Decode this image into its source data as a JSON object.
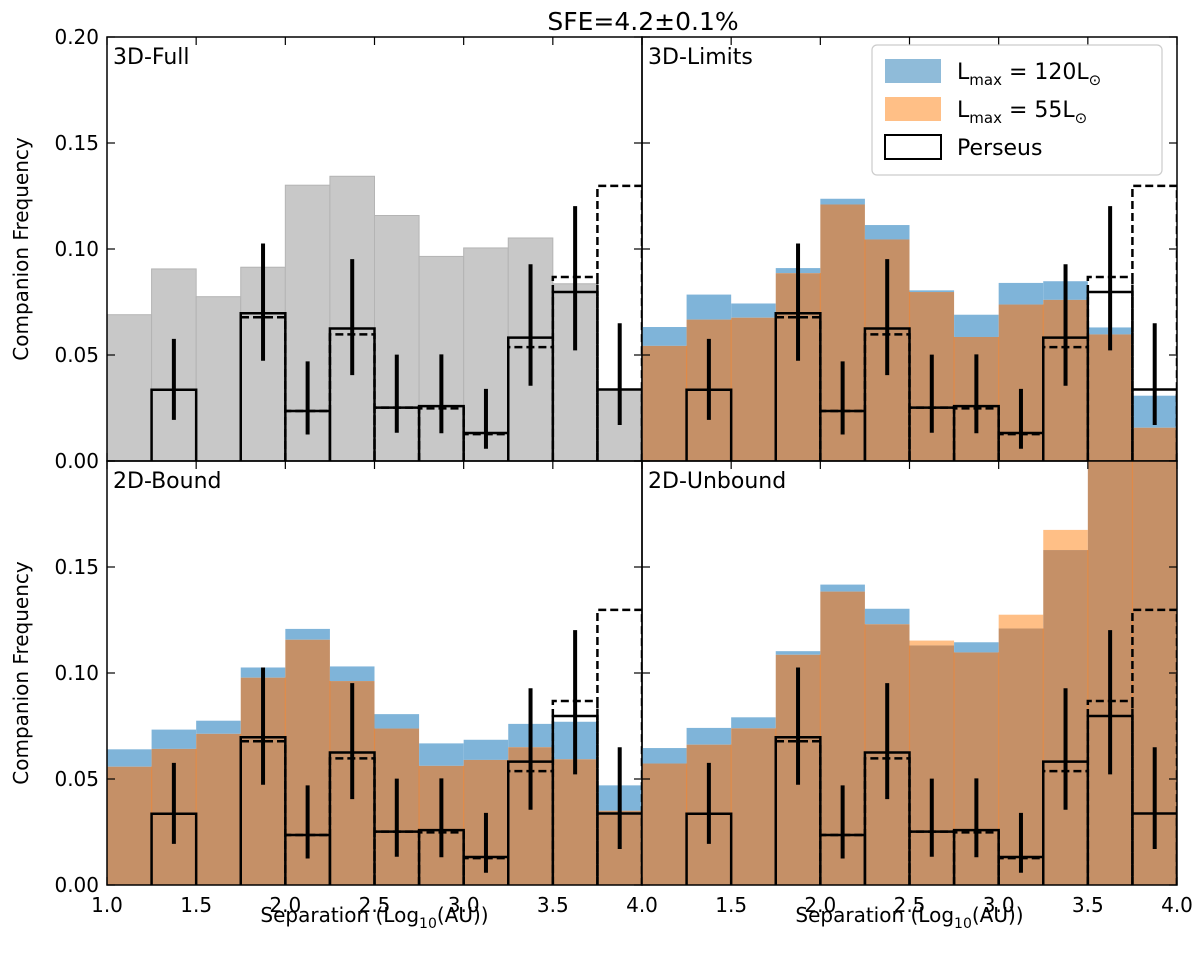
{
  "chart_data": {
    "type": "bar",
    "title": "SFE=4.2±0.1%",
    "xlabel": "Separation (Log10(AU))",
    "xlabel_prefix": "Separation (Log",
    "xlabel_sub": "10",
    "xlabel_suffix": "(AU))",
    "ylabel": "Companion Frequency",
    "xlim": [
      1.0,
      4.0
    ],
    "ylim": [
      0.0,
      0.2
    ],
    "xticks": [
      "1.0",
      "1.5",
      "2.0",
      "2.5",
      "3.0",
      "3.5",
      "4.0"
    ],
    "yticks": [
      "0.00",
      "0.05",
      "0.10",
      "0.15",
      "0.20"
    ],
    "bin_edges": [
      1.0,
      1.25,
      1.5,
      1.75,
      2.0,
      2.25,
      2.5,
      2.75,
      3.0,
      3.25,
      3.5,
      3.75,
      4.0
    ],
    "legend": {
      "position": "top-right",
      "entries": [
        {
          "name": "L_max = 120L⊙",
          "prefix": "L",
          "sub": "max",
          "mid": " = 120L",
          "sun": "⊙",
          "color": "#1f77b4"
        },
        {
          "name": "L_max = 55L⊙",
          "prefix": "L",
          "sub": "max",
          "mid": " = 55L",
          "sun": "⊙",
          "color": "#ff7f0e"
        },
        {
          "name": "Perseus",
          "prefix": "Perseus",
          "sub": "",
          "mid": "",
          "sun": "",
          "color": "#000000"
        }
      ]
    },
    "perseus": {
      "solid": [
        0.0,
        0.0336,
        0.0,
        0.0697,
        0.0236,
        0.0625,
        0.0252,
        0.0259,
        0.0132,
        0.0582,
        0.0797,
        0.0337
      ],
      "dashed": [
        0.0,
        0.0,
        0.0,
        0.0678,
        0.0236,
        0.0597,
        0.0252,
        0.0248,
        0.0127,
        0.0537,
        0.0868,
        0.1298
      ],
      "err_low": [
        null,
        0.0194,
        null,
        0.0473,
        0.0125,
        0.0405,
        0.0133,
        0.0131,
        0.0058,
        0.0355,
        0.0522,
        0.017
      ],
      "err_high": [
        null,
        0.0576,
        null,
        0.1026,
        0.047,
        0.0952,
        0.0502,
        0.0503,
        0.034,
        0.0928,
        0.1202,
        0.065
      ]
    },
    "panels": [
      {
        "name": "3D-Full",
        "gray": [
          0.069,
          0.0906,
          0.0775,
          0.0914,
          0.1301,
          0.1343,
          0.1158,
          0.0965,
          0.1005,
          0.1052,
          0.0836,
          0.0336
        ]
      },
      {
        "name": "3D-Limits",
        "series": [
          {
            "name": "L_max = 120L⊙",
            "values": [
              0.0632,
              0.0785,
              0.0743,
              0.091,
              0.1237,
              0.1113,
              0.0805,
              0.069,
              0.084,
              0.0848,
              0.063,
              0.0308
            ]
          },
          {
            "name": "L_max = 55L⊙",
            "values": [
              0.0543,
              0.0667,
              0.0676,
              0.0886,
              0.121,
              0.1045,
              0.0797,
              0.0585,
              0.0738,
              0.076,
              0.0597,
              0.0157
            ]
          }
        ]
      },
      {
        "name": "2D-Bound",
        "series": [
          {
            "name": "L_max = 120L⊙",
            "values": [
              0.064,
              0.0733,
              0.0775,
              0.1026,
              0.1208,
              0.1031,
              0.0806,
              0.0668,
              0.0685,
              0.076,
              0.077,
              0.047
            ]
          },
          {
            "name": "L_max = 55L⊙",
            "values": [
              0.0558,
              0.0642,
              0.0713,
              0.0978,
              0.1157,
              0.0962,
              0.0738,
              0.0562,
              0.059,
              0.065,
              0.0593,
              0.035
            ]
          }
        ]
      },
      {
        "name": "2D-Unbound",
        "series": [
          {
            "name": "L_max = 120L⊙",
            "values": [
              0.0646,
              0.0741,
              0.0791,
              0.1103,
              0.1417,
              0.1303,
              0.113,
              0.1145,
              0.121,
              0.158,
              0.2,
              0.2
            ]
          },
          {
            "name": "L_max = 55L⊙",
            "values": [
              0.0573,
              0.0662,
              0.0739,
              0.1086,
              0.1384,
              0.123,
              0.1153,
              0.1097,
              0.1275,
              0.1675,
              0.2,
              0.2
            ]
          }
        ]
      }
    ]
  }
}
